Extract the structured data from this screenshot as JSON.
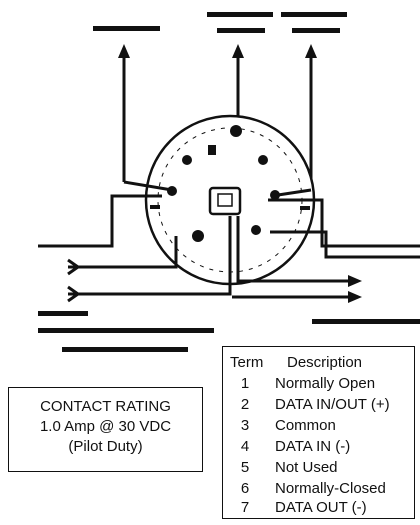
{
  "contact_rating": {
    "title": "CONTACT RATING",
    "line1": "1.0 Amp @ 30 VDC",
    "line2": "(Pilot Duty)"
  },
  "terminal_table": {
    "header_term": "Term",
    "header_description": "Description",
    "rows": [
      {
        "term": "1",
        "description": "Normally Open"
      },
      {
        "term": "2",
        "description": "DATA IN/OUT (+)"
      },
      {
        "term": "3",
        "description": "Common"
      },
      {
        "term": "4",
        "description": "DATA IN (-)"
      },
      {
        "term": "5",
        "description": "Not Used"
      },
      {
        "term": "6",
        "description": "Normally-Closed"
      },
      {
        "term": "7",
        "description": "DATA OUT (-)"
      }
    ]
  }
}
